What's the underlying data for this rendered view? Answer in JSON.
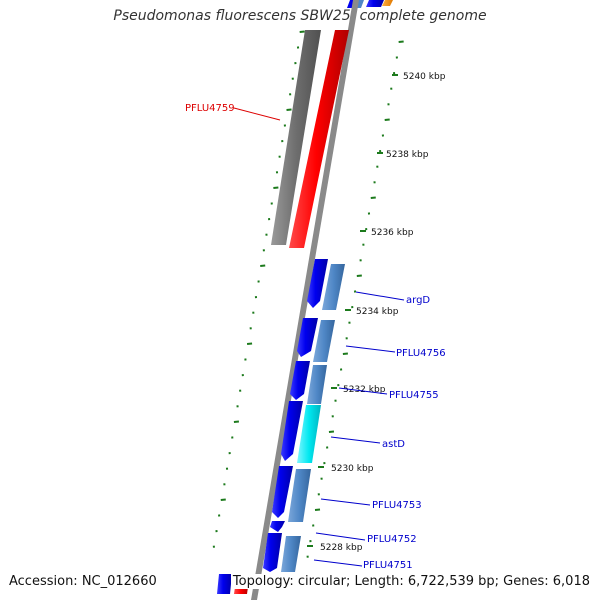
{
  "title": "Pseudomonas fluorescens SBW25, complete genome",
  "footer": {
    "accession": "Accession: NC_012660",
    "summary": "Topology: circular; Length: 6,722,539 bp; Genes: 6,018"
  },
  "colors": {
    "background": "#ffffff",
    "backbone": "#8a8a8a",
    "forward_gene": "#0000ee",
    "reverse_gene": "#4f87c6",
    "highlight_red": "#ff0000",
    "highlight_gray": "#707070",
    "highlight_cyan": "#00e8f0",
    "tick": "#1c7a1c",
    "gene_label": "#0000cc",
    "selected_label": "#dd0000"
  },
  "ticks": [
    "5240 kbp",
    "5238 kbp",
    "5236 kbp",
    "5234 kbp",
    "5232 kbp",
    "5230 kbp",
    "5228 kbp"
  ],
  "gene_labels": [
    "PFLU4759",
    "argD",
    "PFLU4756",
    "PFLU4755",
    "astD",
    "PFLU4753",
    "PFLU4752",
    "PFLU4751"
  ]
}
